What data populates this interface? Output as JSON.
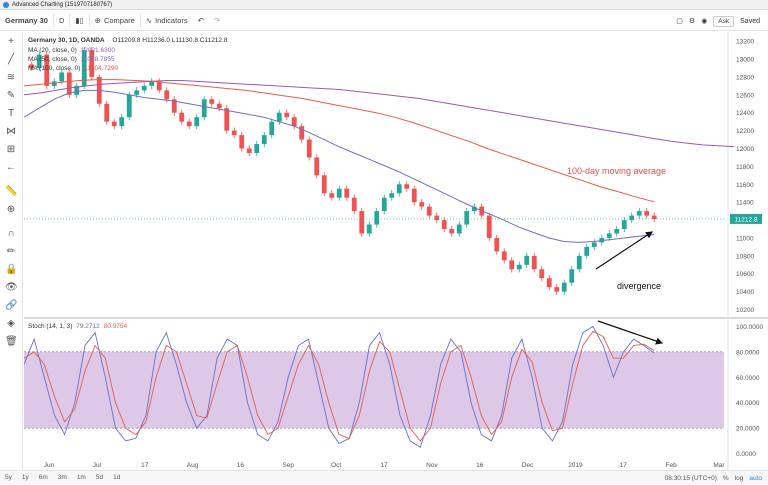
{
  "window": {
    "title": "Advanced Charting (1519707180767)"
  },
  "toolbar": {
    "symbol": "Germany 30",
    "interval": "D",
    "compare_label": "Compare",
    "indicators_label": "Indicators",
    "ask_label": "Ask",
    "saved_label": "Saved"
  },
  "legend": {
    "header": "Germany 30, 1D, OANDA",
    "ohlc": "O11209.8  H11236.0  L11130.8  C11212.8",
    "ma1_label": "MA (20, close, 0)",
    "ma1_value": "12021.6300",
    "ma2_label": "MA (50, close, 0)",
    "ma2_value": "11038.7855",
    "ma3_label": "MA (100, close, 0)",
    "ma3_value": "11404.7290",
    "stoch_label": "Stoch (14, 1, 3)",
    "stoch_k": "79.2712",
    "stoch_d": "80.9754"
  },
  "bottombar": {
    "ranges": [
      "5y",
      "1y",
      "6m",
      "3m",
      "1m",
      "5d",
      "1d"
    ],
    "time": "08:30:15 (UTC+0)",
    "pct": "%",
    "log": "log",
    "auto": "auto"
  },
  "colors": {
    "up": "#26a69a",
    "down": "#ef5350",
    "ma20": "#9b59b6",
    "ma50": "#6c6fc6",
    "ma100": "#e35d4f",
    "stoch_band": "#c39bd3",
    "stoch_k": "#6c6fc6",
    "stoch_d": "#e35d4f",
    "annotation": "#d9534f"
  },
  "chart_data": [
    {
      "type": "candlestick",
      "title": "Germany 30, 1D, OANDA",
      "x_ticks": [
        "Jun",
        "Jul",
        "17",
        "Aug",
        "16",
        "Sep",
        "Oct",
        "17",
        "Nov",
        "16",
        "Dec",
        "2019",
        "17",
        "Feb",
        "Mar"
      ],
      "y_ticks": [
        13200,
        13000,
        12800,
        12600,
        12400,
        12200,
        12000,
        11800,
        11600,
        11400,
        11200,
        11000,
        10800,
        10600,
        10400,
        10200
      ],
      "ylim": [
        10150,
        13280
      ],
      "last_price": "11212.8",
      "annotations": [
        "100-day moving average",
        "divergence"
      ],
      "series": [
        {
          "name": "Germany 30",
          "close_path": [
            12900,
            13050,
            12700,
            12750,
            12850,
            12600,
            12700,
            13100,
            12800,
            12500,
            12300,
            12250,
            12350,
            12600,
            12650,
            12700,
            12750,
            12650,
            12550,
            12400,
            12300,
            12250,
            12350,
            12550,
            12500,
            12450,
            12200,
            12150,
            12000,
            11950,
            12050,
            12150,
            12300,
            12400,
            12350,
            12250,
            12100,
            11900,
            11700,
            11500,
            11450,
            11550,
            11450,
            11300,
            11050,
            11150,
            11300,
            11450,
            11500,
            11600,
            11550,
            11400,
            11350,
            11250,
            11200,
            11100,
            11050,
            11150,
            11300,
            11350,
            11250,
            11000,
            10850,
            10750,
            10650,
            10700,
            10800,
            10650,
            10550,
            10450,
            10400,
            10500,
            10650,
            10800,
            10900,
            10950,
            11000,
            11050,
            11100,
            11200,
            11250,
            11300,
            11250,
            11212
          ]
        },
        {
          "name": "MA (20, close, 0)",
          "values": [
            12600,
            12620,
            12650,
            12680,
            12700,
            12720,
            12730,
            12740,
            12750,
            12760,
            12760,
            12750,
            12740,
            12730,
            12720,
            12710,
            12700,
            12690,
            12680,
            12670,
            12660,
            12640,
            12620,
            12600,
            12580,
            12560,
            12530,
            12500,
            12470,
            12440,
            12410,
            12380,
            12350,
            12320,
            12290,
            12260,
            12230,
            12200,
            12170,
            12140,
            12110,
            12080,
            12060,
            12040,
            12030,
            12021
          ]
        },
        {
          "name": "MA (50, close, 0)",
          "values": [
            12350,
            12450,
            12550,
            12620,
            12650,
            12650,
            12630,
            12600,
            12570,
            12550,
            12530,
            12500,
            12470,
            12440,
            12410,
            12380,
            12350,
            12300,
            12250,
            12180,
            12100,
            12020,
            11950,
            11880,
            11810,
            11740,
            11660,
            11580,
            11500,
            11420,
            11340,
            11270,
            11200,
            11120,
            11060,
            11000,
            10960,
            10950,
            10960,
            10980,
            11000,
            11020,
            11038
          ]
        },
        {
          "name": "MA (100, close, 0)",
          "values": [
            12700,
            12720,
            12740,
            12760,
            12770,
            12770,
            12760,
            12750,
            12730,
            12710,
            12690,
            12670,
            12650,
            12620,
            12590,
            12560,
            12520,
            12480,
            12440,
            12400,
            12350,
            12290,
            12220,
            12150,
            12080,
            12000,
            11930,
            11860,
            11790,
            11720,
            11650,
            11580,
            11520,
            11460,
            11404
          ]
        }
      ]
    },
    {
      "type": "line",
      "title": "Stoch (14, 1, 3)",
      "y_ticks": [
        100,
        80,
        60,
        40,
        20,
        0
      ],
      "ylim": [
        -5,
        105
      ],
      "band": [
        20,
        80
      ],
      "series": [
        {
          "name": "%K",
          "values": [
            70,
            90,
            60,
            30,
            15,
            40,
            85,
            95,
            60,
            20,
            10,
            12,
            30,
            80,
            95,
            70,
            40,
            20,
            30,
            75,
            90,
            85,
            40,
            15,
            10,
            25,
            60,
            85,
            90,
            55,
            20,
            8,
            12,
            40,
            85,
            95,
            70,
            30,
            10,
            5,
            30,
            70,
            90,
            80,
            40,
            15,
            10,
            30,
            75,
            90,
            60,
            20,
            10,
            25,
            70,
            95,
            100,
            85,
            60,
            80,
            90,
            85,
            79
          ]
        },
        {
          "name": "%D",
          "values": [
            75,
            80,
            70,
            45,
            25,
            35,
            65,
            85,
            75,
            40,
            20,
            15,
            25,
            60,
            85,
            80,
            55,
            30,
            28,
            55,
            80,
            85,
            60,
            30,
            15,
            20,
            45,
            70,
            85,
            70,
            40,
            15,
            12,
            30,
            65,
            88,
            80,
            50,
            20,
            10,
            20,
            55,
            80,
            85,
            60,
            30,
            15,
            25,
            60,
            82,
            72,
            40,
            18,
            20,
            55,
            85,
            96,
            92,
            75,
            75,
            85,
            86,
            81
          ]
        }
      ]
    }
  ]
}
